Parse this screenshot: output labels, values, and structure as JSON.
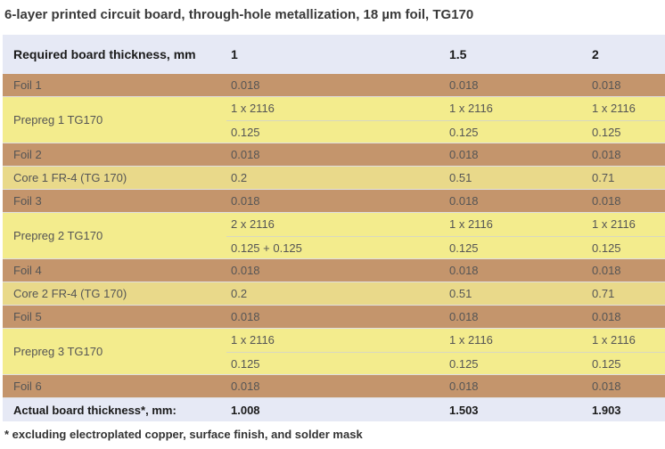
{
  "title": "6-layer printed circuit board, through-hole metallization, 18 µm foil, TG170",
  "header": {
    "label": "Required board thickness, mm",
    "col1": "1",
    "col2": "1.5",
    "col3": "2"
  },
  "rows": {
    "foil1": {
      "label": "Foil 1",
      "v1": "0.018",
      "v2": "0.018",
      "v3": "0.018"
    },
    "prepreg1": {
      "label": "Prepreg 1 TG170",
      "a1": "1 x 2116",
      "a2": "1 x 2116",
      "a3": "1 x 2116",
      "b1": "0.125",
      "b2": "0.125",
      "b3": "0.125"
    },
    "foil2": {
      "label": "Foil 2",
      "v1": "0.018",
      "v2": "0.018",
      "v3": "0.018"
    },
    "core1": {
      "label": "Core 1 FR-4 (TG 170)",
      "v1": "0.2",
      "v2": "0.51",
      "v3": "0.71"
    },
    "foil3": {
      "label": "Foil 3",
      "v1": "0.018",
      "v2": "0.018",
      "v3": "0.018"
    },
    "prepreg2": {
      "label": "Prepreg 2 TG170",
      "a1": "2 x 2116",
      "a2": "1 x 2116",
      "a3": "1 x 2116",
      "b1": "0.125 + 0.125",
      "b2": "0.125",
      "b3": "0.125"
    },
    "foil4": {
      "label": "Foil 4",
      "v1": "0.018",
      "v2": "0.018",
      "v3": "0.018"
    },
    "core2": {
      "label": "Core 2 FR-4 (TG 170)",
      "v1": "0.2",
      "v2": "0.51",
      "v3": "0.71"
    },
    "foil5": {
      "label": "Foil 5",
      "v1": "0.018",
      "v2": "0.018",
      "v3": "0.018"
    },
    "prepreg3": {
      "label": "Prepreg 3 TG170",
      "a1": "1 x 2116",
      "a2": "1 x 2116",
      "a3": "1 x 2116",
      "b1": "0.125",
      "b2": "0.125",
      "b3": "0.125"
    },
    "foil6": {
      "label": "Foil 6",
      "v1": "0.018",
      "v2": "0.018",
      "v3": "0.018"
    }
  },
  "footer": {
    "label": "Actual board thickness*, mm:",
    "col1": "1.008",
    "col2": "1.503",
    "col3": "1.903"
  },
  "note": "* excluding electroplated copper, surface finish, and solder mask",
  "colors": {
    "header_bg": "#e6e9f5",
    "foil_bg": "#c4956c",
    "core_bg": "#e9d98a",
    "prepreg_bg": "#f3ec8d"
  }
}
